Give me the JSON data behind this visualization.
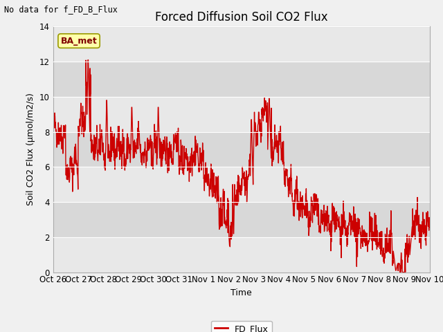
{
  "title": "Forced Diffusion Soil CO2 Flux",
  "xlabel": "Time",
  "ylabel": "Soil CO2 Flux (umol/m2/s)",
  "ylim": [
    0,
    14
  ],
  "yticks": [
    0,
    2,
    4,
    6,
    8,
    10,
    12,
    14
  ],
  "xtick_labels": [
    "Oct 26",
    "Oct 27",
    "Oct 28",
    "Oct 29",
    "Oct 30",
    "Oct 31",
    "Nov 1",
    "Nov 2",
    "Nov 3",
    "Nov 4",
    "Nov 5",
    "Nov 6",
    "Nov 7",
    "Nov 8",
    "Nov 9",
    "Nov 10"
  ],
  "line_color": "#cc0000",
  "line_width": 1.0,
  "bg_color": "#f0f0f0",
  "plot_bg_color": "#f0f0f0",
  "legend_label": "FD_Flux",
  "no_data_text": "No data for f_FD_B_Flux",
  "annotation_text": "BA_met",
  "annotation_bg": "#ffffaa",
  "annotation_border": "#999900",
  "title_fontsize": 12,
  "label_fontsize": 9,
  "tick_fontsize": 8.5,
  "band_colors": [
    "#e8e8e8",
    "#d8d8d8"
  ]
}
